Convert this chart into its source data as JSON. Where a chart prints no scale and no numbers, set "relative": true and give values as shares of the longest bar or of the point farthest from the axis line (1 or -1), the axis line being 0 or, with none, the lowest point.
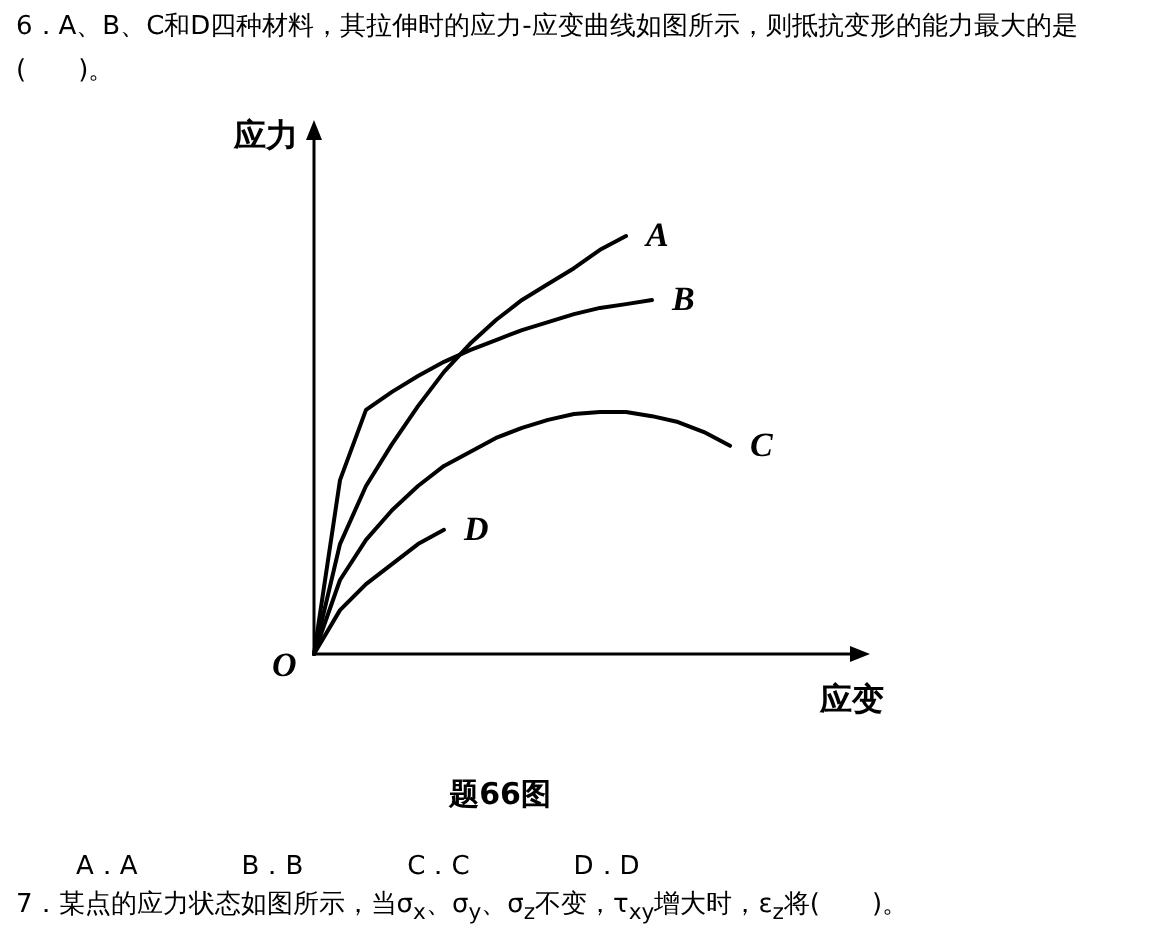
{
  "chart_data": {
    "type": "line",
    "relative": true,
    "title": "6．A、B、C和D四种材料，其拉伸时的应力-应变曲线如图所示，则抵抗变形的能力最大的是(　　)。",
    "ylabel": "应力",
    "xlabel": "应变",
    "categories": [
      null,
      null,
      null,
      null,
      null,
      null,
      null,
      null,
      null,
      null,
      null,
      null,
      null,
      null,
      null,
      null,
      null
    ],
    "series": [
      {
        "name": "A",
        "color": "#000000",
        "values": [
          0,
          0.263,
          0.402,
          0.502,
          0.593,
          0.675,
          0.742,
          0.799,
          0.847,
          0.885,
          0.923,
          0.967,
          1,
          null,
          null,
          null,
          null
        ]
      },
      {
        "name": "B",
        "color": "#000000",
        "values": [
          0,
          0.416,
          0.584,
          0.627,
          0.665,
          0.699,
          0.727,
          0.751,
          0.775,
          0.794,
          0.813,
          0.828,
          0.837,
          0.847,
          null,
          null,
          null
        ]
      },
      {
        "name": "C",
        "color": "#000000",
        "values": [
          0,
          0.177,
          0.273,
          0.344,
          0.402,
          0.45,
          0.483,
          0.517,
          0.541,
          0.56,
          0.574,
          0.579,
          0.579,
          0.569,
          0.555,
          0.531,
          0.498
        ]
      },
      {
        "name": "D",
        "color": "#000000",
        "values": [
          0,
          0.105,
          0.167,
          0.215,
          0.263,
          0.297,
          null,
          null,
          null,
          null,
          null,
          null,
          null,
          null,
          null,
          null,
          null
        ]
      }
    ],
    "annotations": [
      "O",
      "题66图",
      "A．A　　　　B．B　　　　C．C　　　　D．D",
      "7．某点的应力状态如图所示，当σ$_{x}$、σ$_{y}$、σ$_{z}$不变，τ$_{xy}$增大时，ε$_{z}$将(　　)。"
    ],
    "marker": "none",
    "line_style": "solid"
  }
}
